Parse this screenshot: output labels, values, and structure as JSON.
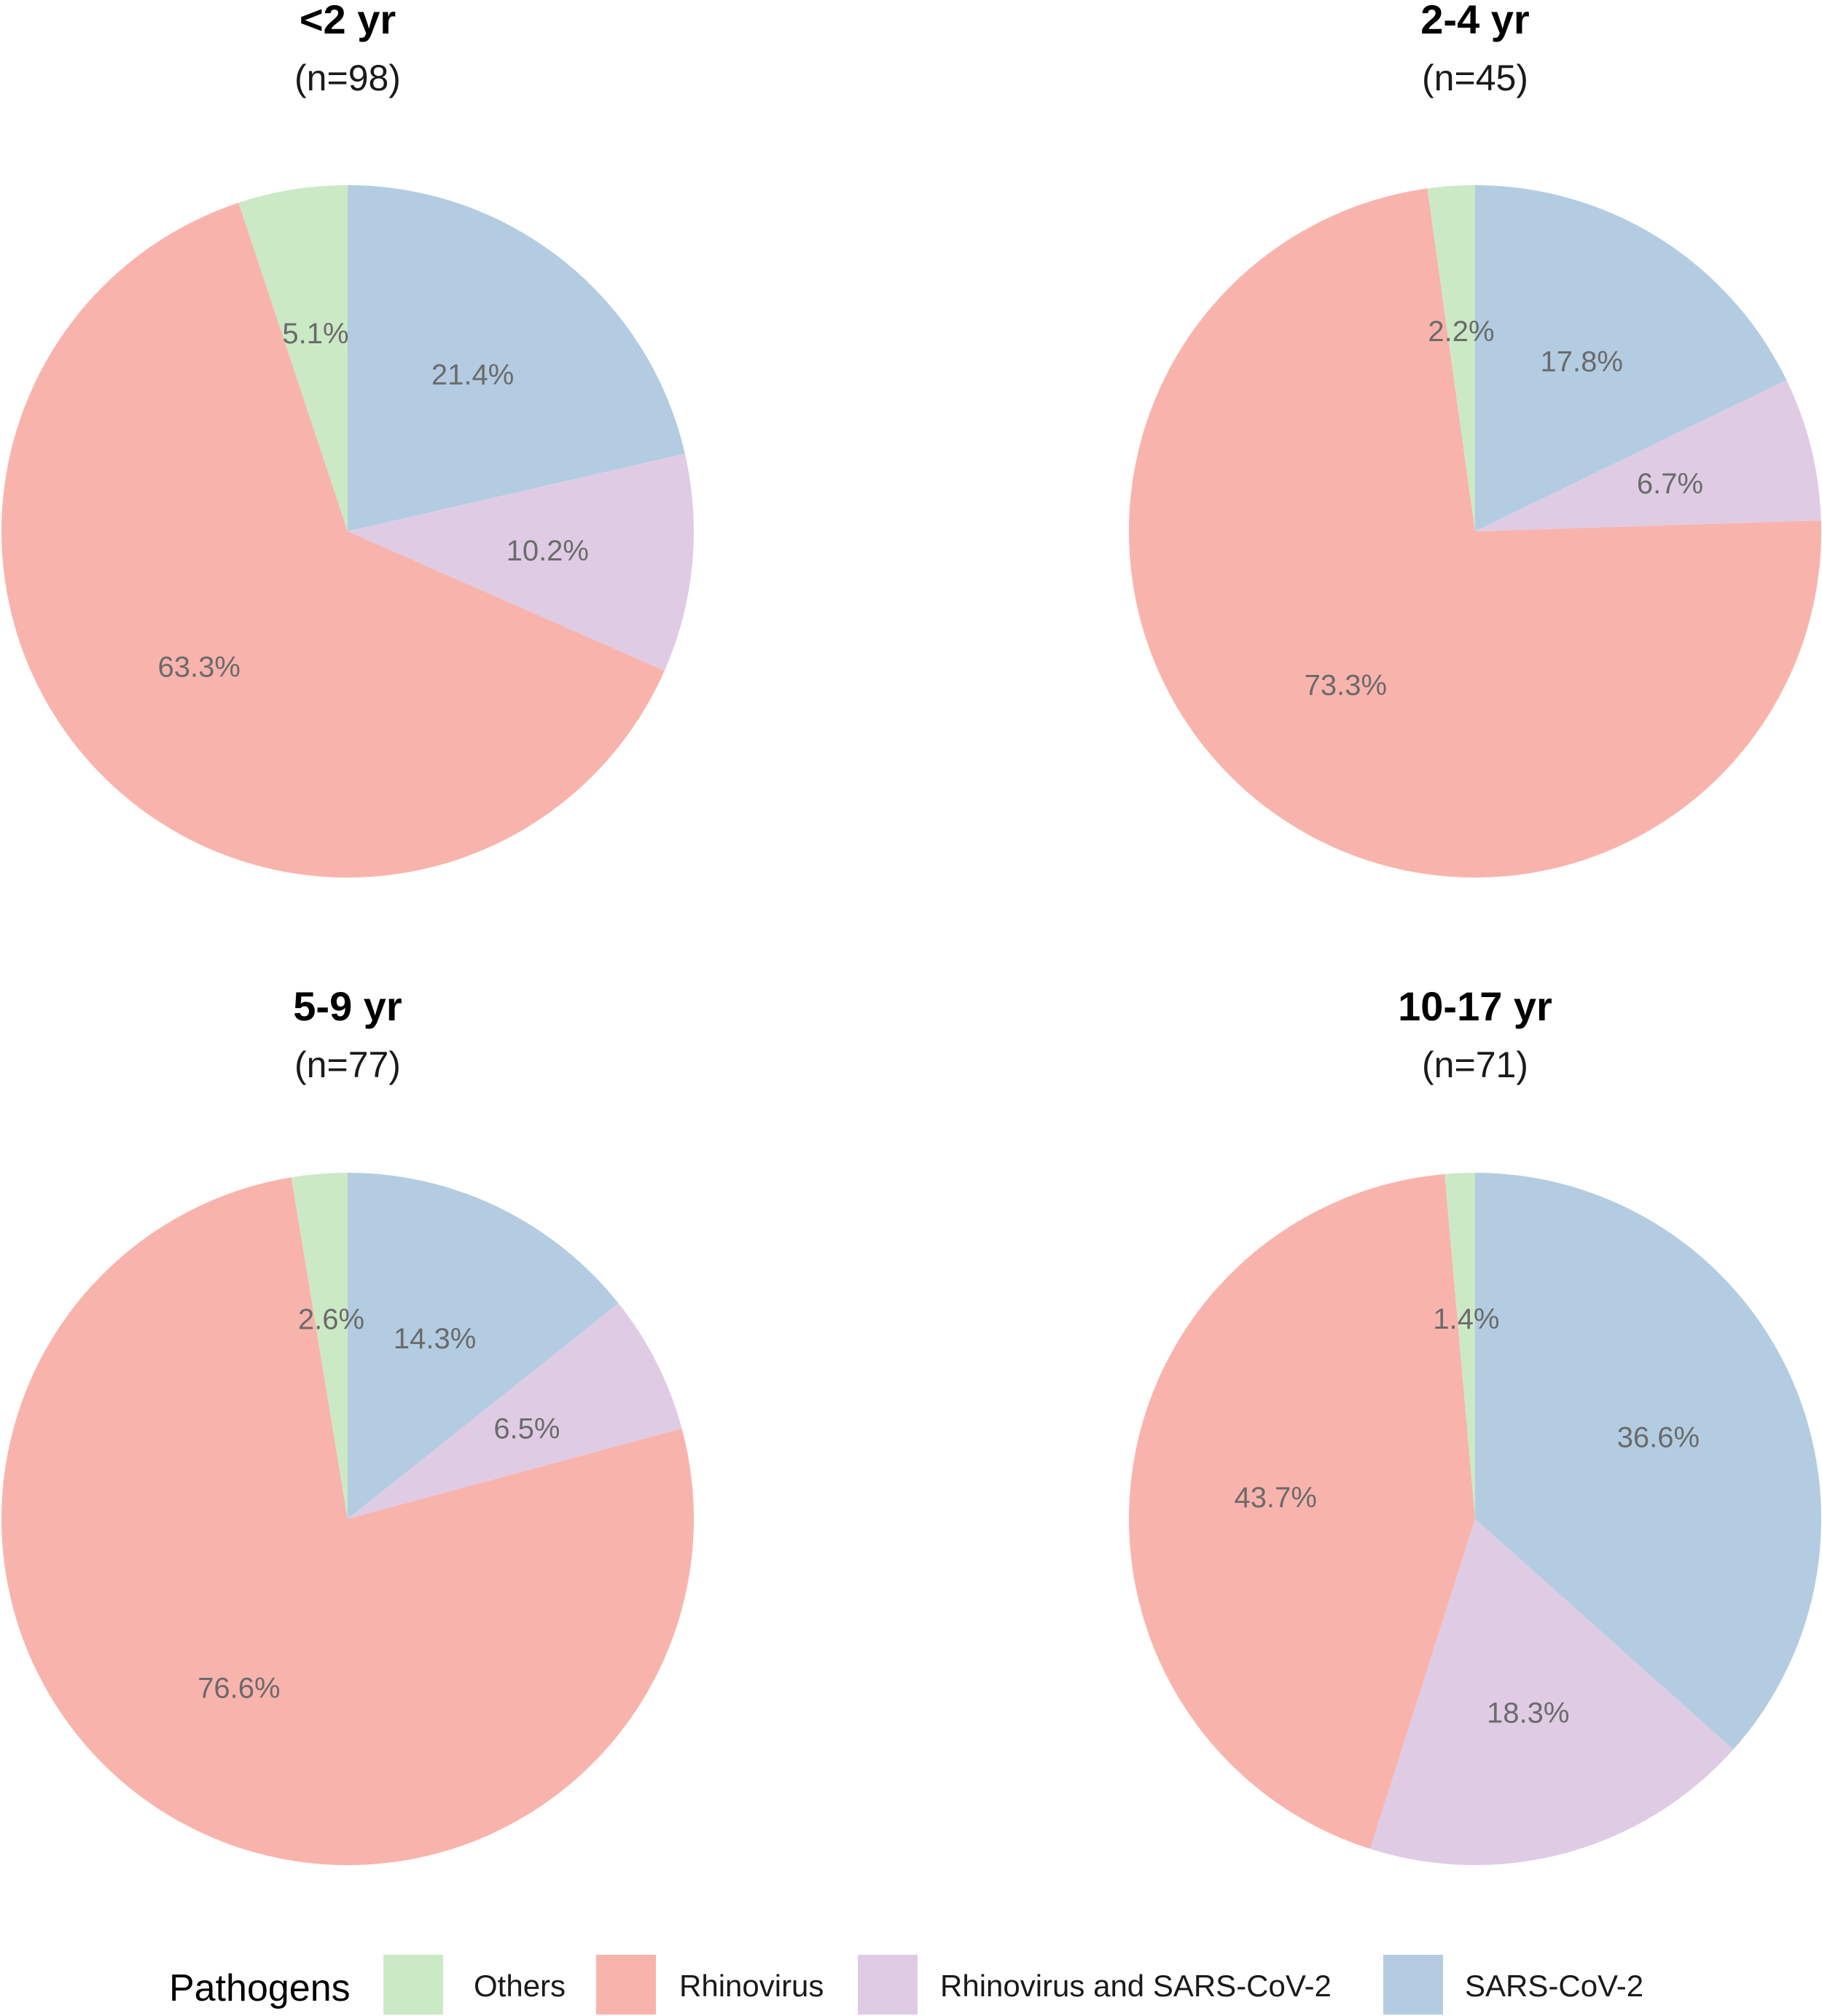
{
  "chart_data": {
    "type": "pie",
    "categories": [
      "Others",
      "Rhinovirus",
      "Rhinovirus and SARS-CoV-2",
      "SARS-CoV-2"
    ],
    "colors": {
      "Others": "#cce9c5",
      "Rhinovirus": "#f9b3ad",
      "Rhinovirus and SARS-CoV-2": "#dfcce4",
      "SARS-CoV-2": "#b3cce1"
    },
    "legend": {
      "title": "Pathogens",
      "position": "bottom"
    },
    "panels": [
      {
        "title": "<2 yr",
        "subtitle": "(n=98)",
        "slices": [
          {
            "category": "SARS-CoV-2",
            "value": 21.4,
            "label": "21.4%"
          },
          {
            "category": "Rhinovirus and SARS-CoV-2",
            "value": 10.2,
            "label": "10.2%"
          },
          {
            "category": "Rhinovirus",
            "value": 63.3,
            "label": "63.3%"
          },
          {
            "category": "Others",
            "value": 5.1,
            "label": "5.1%"
          }
        ]
      },
      {
        "title": "2-4 yr",
        "subtitle": "(n=45)",
        "slices": [
          {
            "category": "SARS-CoV-2",
            "value": 17.8,
            "label": "17.8%"
          },
          {
            "category": "Rhinovirus and SARS-CoV-2",
            "value": 6.7,
            "label": "6.7%"
          },
          {
            "category": "Rhinovirus",
            "value": 73.3,
            "label": "73.3%"
          },
          {
            "category": "Others",
            "value": 2.2,
            "label": "2.2%"
          }
        ]
      },
      {
        "title": "5-9 yr",
        "subtitle": "(n=77)",
        "slices": [
          {
            "category": "SARS-CoV-2",
            "value": 14.3,
            "label": "14.3%"
          },
          {
            "category": "Rhinovirus and SARS-CoV-2",
            "value": 6.5,
            "label": "6.5%"
          },
          {
            "category": "Rhinovirus",
            "value": 76.6,
            "label": "76.6%"
          },
          {
            "category": "Others",
            "value": 2.6,
            "label": "2.6%"
          }
        ]
      },
      {
        "title": "10-17 yr",
        "subtitle": "(n=71)",
        "slices": [
          {
            "category": "SARS-CoV-2",
            "value": 36.6,
            "label": "36.6%"
          },
          {
            "category": "Rhinovirus and SARS-CoV-2",
            "value": 18.3,
            "label": "18.3%"
          },
          {
            "category": "Rhinovirus",
            "value": 43.7,
            "label": "43.7%"
          },
          {
            "category": "Others",
            "value": 1.4,
            "label": "1.4%"
          }
        ]
      }
    ]
  }
}
